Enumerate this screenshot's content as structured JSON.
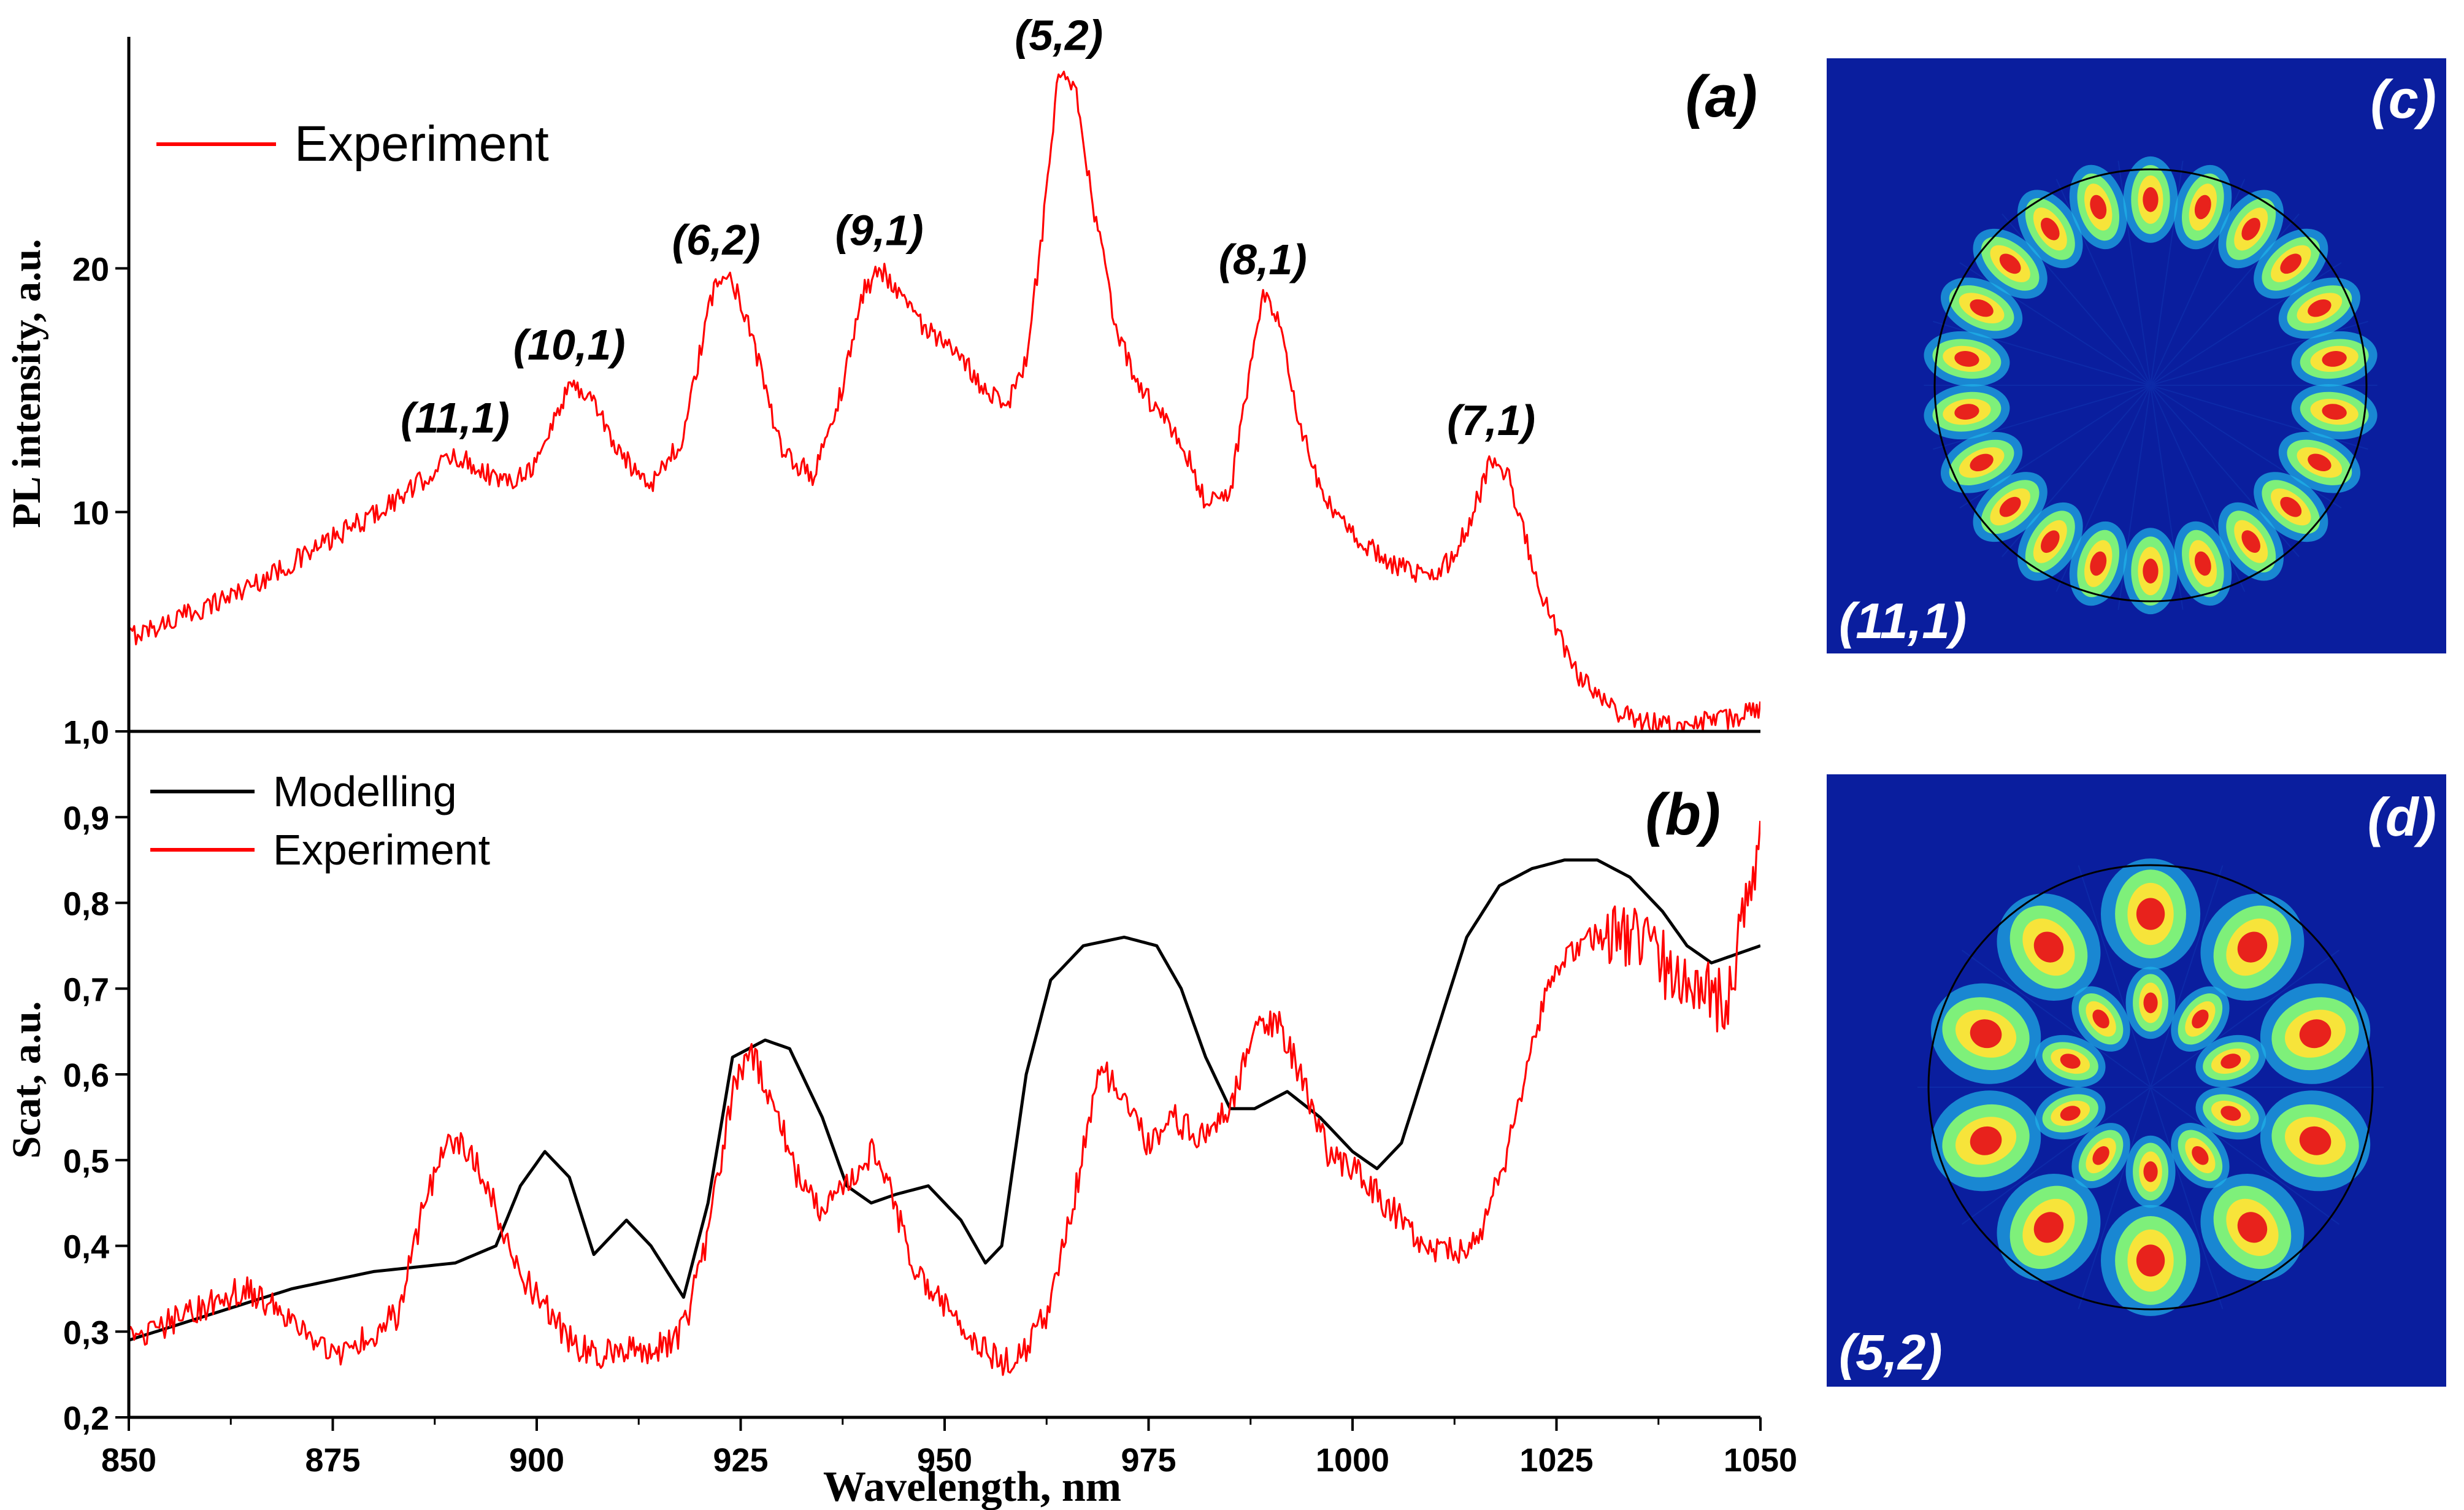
{
  "chart_data": [
    {
      "panel_label": "(a)",
      "type": "line",
      "title": "",
      "xlabel": "",
      "ylabel": "PL intensity, a.u.",
      "xlim": [
        850,
        1050
      ],
      "ylim": [
        1.0,
        29.5
      ],
      "y_ticks": [
        "1,0",
        "10",
        "20"
      ],
      "y_tick_values": [
        1.0,
        10,
        20
      ],
      "legend": {
        "placement": "top-left",
        "entries": [
          "Experiment"
        ]
      },
      "series": [
        {
          "name": "Experiment",
          "color": "#ff0000",
          "noise": 0.45,
          "x": [
            850,
            855,
            860,
            865,
            870,
            875,
            880,
            885,
            888,
            890,
            893,
            896,
            900,
            904,
            907,
            910,
            914,
            918,
            920,
            922,
            924,
            926,
            930,
            934,
            937,
            940,
            942,
            944,
            947,
            950,
            953,
            955,
            958,
            960,
            962,
            964,
            966,
            968,
            971,
            974,
            977,
            980,
            982,
            985,
            987,
            989,
            991,
            993,
            996,
            1000,
            1005,
            1008,
            1011,
            1014,
            1017,
            1019,
            1021,
            1024,
            1027,
            1030,
            1034,
            1038,
            1042,
            1046,
            1050
          ],
          "y": [
            4.9,
            5.5,
            6.2,
            7.0,
            7.9,
            8.9,
            9.9,
            11.0,
            11.9,
            12.3,
            11.8,
            11.2,
            12.0,
            15.3,
            14.6,
            12.4,
            11.2,
            13.0,
            16.5,
            19.6,
            19.5,
            17.8,
            12.4,
            11.5,
            14.5,
            19.0,
            20.0,
            19.3,
            17.8,
            16.8,
            15.9,
            15.0,
            14.6,
            16.2,
            21.5,
            28.0,
            27.3,
            23.0,
            17.5,
            15.0,
            13.8,
            12.1,
            10.4,
            10.8,
            15.0,
            18.8,
            17.8,
            14.3,
            10.8,
            9.0,
            7.9,
            7.4,
            7.6,
            9.2,
            12.2,
            11.6,
            9.1,
            5.9,
            3.6,
            2.3,
            1.6,
            1.2,
            1.3,
            1.5,
            1.9
          ]
        }
      ],
      "annotations": [
        {
          "text": "(11,1)",
          "x": 890,
          "y": 12.3
        },
        {
          "text": "(10,1)",
          "x": 904,
          "y": 15.3
        },
        {
          "text": "(6,2)",
          "x": 922,
          "y": 19.6
        },
        {
          "text": "(9,1)",
          "x": 942,
          "y": 20.0
        },
        {
          "text": "(5,2)",
          "x": 964,
          "y": 28.0
        },
        {
          "text": "(8,1)",
          "x": 989,
          "y": 18.8
        },
        {
          "text": "(7,1)",
          "x": 1017,
          "y": 12.2
        }
      ]
    },
    {
      "panel_label": "(b)",
      "type": "line",
      "title": "",
      "xlabel": "Wavelength, nm",
      "ylabel": "Scat, a.u.",
      "xlim": [
        850,
        1050
      ],
      "ylim": [
        0.2,
        1.0
      ],
      "x_ticks": [
        "850",
        "875",
        "900",
        "925",
        "950",
        "975",
        "1000",
        "1025",
        "1050"
      ],
      "x_tick_values": [
        850,
        875,
        900,
        925,
        950,
        975,
        1000,
        1025,
        1050
      ],
      "y_ticks": [
        "0,2",
        "0,3",
        "0,4",
        "0,5",
        "0,6",
        "0,7",
        "0,8",
        "0,9"
      ],
      "y_tick_values": [
        0.2,
        0.3,
        0.4,
        0.5,
        0.6,
        0.7,
        0.8,
        0.9
      ],
      "legend": {
        "placement": "top-left",
        "entries": [
          "Modelling",
          "Experiment"
        ]
      },
      "series": [
        {
          "name": "Modelling",
          "color": "#000000",
          "noise": 0,
          "x": [
            850,
            860,
            870,
            880,
            890,
            895,
            898,
            901,
            904,
            907,
            911,
            914,
            918,
            921,
            924,
            928,
            931,
            935,
            938,
            941,
            944,
            948,
            952,
            955,
            957,
            960,
            963,
            967,
            972,
            976,
            979,
            982,
            985,
            988,
            992,
            996,
            1000,
            1003,
            1006,
            1010,
            1014,
            1018,
            1022,
            1026,
            1030,
            1034,
            1038,
            1041,
            1044,
            1047,
            1050
          ],
          "y": [
            0.29,
            0.32,
            0.35,
            0.37,
            0.38,
            0.4,
            0.47,
            0.51,
            0.48,
            0.39,
            0.43,
            0.4,
            0.34,
            0.45,
            0.62,
            0.64,
            0.63,
            0.55,
            0.47,
            0.45,
            0.46,
            0.47,
            0.43,
            0.38,
            0.4,
            0.6,
            0.71,
            0.75,
            0.76,
            0.75,
            0.7,
            0.62,
            0.56,
            0.56,
            0.58,
            0.55,
            0.51,
            0.49,
            0.52,
            0.64,
            0.76,
            0.82,
            0.84,
            0.85,
            0.85,
            0.83,
            0.79,
            0.75,
            0.73,
            0.74,
            0.75
          ]
        },
        {
          "name": "Experiment",
          "color": "#ff0000",
          "noise": 0.018,
          "x": [
            850,
            855,
            860,
            864,
            868,
            872,
            875,
            879,
            883,
            886,
            889,
            891,
            894,
            897,
            900,
            904,
            907,
            911,
            915,
            918,
            921,
            924,
            926,
            929,
            932,
            935,
            938,
            941,
            943,
            946,
            950,
            954,
            957,
            960,
            963,
            966,
            969,
            972,
            975,
            978,
            981,
            985,
            988,
            991,
            994,
            997,
            1001,
            1005,
            1009,
            1013,
            1016,
            1019,
            1022,
            1025,
            1028,
            1032,
            1036,
            1040,
            1043,
            1046,
            1048,
            1050
          ],
          "y": [
            0.29,
            0.31,
            0.33,
            0.35,
            0.33,
            0.29,
            0.27,
            0.29,
            0.32,
            0.44,
            0.52,
            0.52,
            0.47,
            0.38,
            0.34,
            0.29,
            0.27,
            0.28,
            0.28,
            0.3,
            0.41,
            0.58,
            0.63,
            0.57,
            0.48,
            0.44,
            0.47,
            0.51,
            0.48,
            0.38,
            0.33,
            0.29,
            0.26,
            0.28,
            0.33,
            0.46,
            0.61,
            0.57,
            0.52,
            0.55,
            0.53,
            0.56,
            0.65,
            0.66,
            0.59,
            0.51,
            0.48,
            0.44,
            0.4,
            0.39,
            0.42,
            0.51,
            0.64,
            0.73,
            0.75,
            0.77,
            0.75,
            0.71,
            0.7,
            0.68,
            0.8,
            0.88
          ]
        }
      ]
    }
  ],
  "mode_images": [
    {
      "panel_label": "(c)",
      "mode_label": "(11,1)",
      "n": 11,
      "m": 1
    },
    {
      "panel_label": "(d)",
      "mode_label": "(5,2)",
      "n": 5,
      "m": 2
    }
  ]
}
